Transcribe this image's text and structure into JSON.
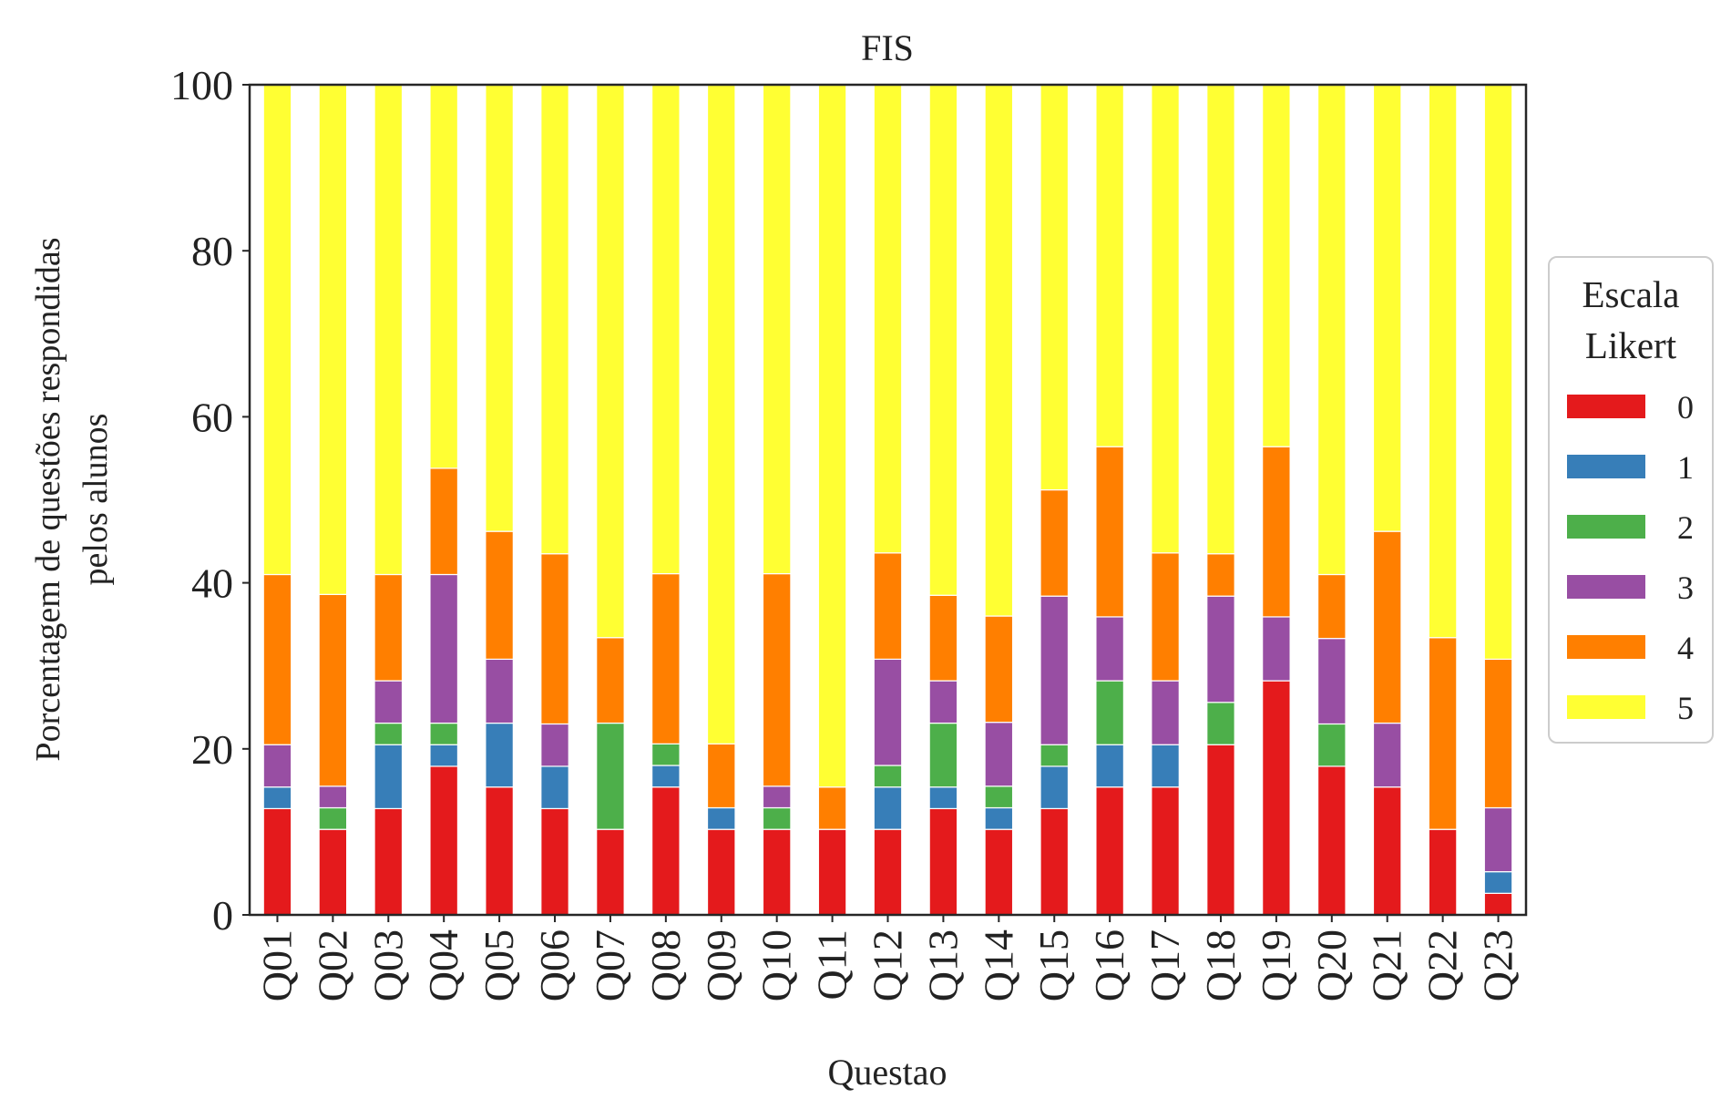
{
  "chart_data": {
    "type": "bar",
    "stacked": true,
    "title": "FIS",
    "xlabel": "Questao",
    "ylabel_lines": [
      "Porcentagem de questões respondidas",
      "pelos alunos"
    ],
    "ylim": [
      0,
      100
    ],
    "yticks": [
      0,
      20,
      40,
      60,
      80,
      100
    ],
    "yticks_labels": [
      "0",
      "20",
      "40",
      "60",
      "80",
      "100"
    ],
    "grid": false,
    "legend": {
      "title_lines": [
        "Escala",
        "Likert"
      ],
      "placement": "right-center"
    },
    "categories": [
      "Q01",
      "Q02",
      "Q03",
      "Q04",
      "Q05",
      "Q06",
      "Q07",
      "Q08",
      "Q09",
      "Q10",
      "Q11",
      "Q12",
      "Q13",
      "Q14",
      "Q15",
      "Q16",
      "Q17",
      "Q18",
      "Q19",
      "Q20",
      "Q21",
      "Q22",
      "Q23"
    ],
    "series": [
      {
        "name": "0",
        "color": "#e41a1c",
        "values": [
          12.8,
          10.3,
          12.8,
          17.9,
          15.4,
          12.8,
          10.3,
          15.4,
          10.3,
          10.3,
          10.3,
          10.3,
          12.8,
          10.3,
          12.8,
          15.4,
          15.4,
          20.5,
          28.2,
          17.9,
          15.4,
          10.3,
          2.6
        ]
      },
      {
        "name": "1",
        "color": "#377eb8",
        "values": [
          2.6,
          0.0,
          7.7,
          2.6,
          7.7,
          5.1,
          0.0,
          2.6,
          2.6,
          0.0,
          0.0,
          5.1,
          2.6,
          2.6,
          5.1,
          5.1,
          5.1,
          0.0,
          0.0,
          0.0,
          0.0,
          0.0,
          2.6
        ]
      },
      {
        "name": "2",
        "color": "#4daf4a",
        "values": [
          0.0,
          2.6,
          2.6,
          2.6,
          0.0,
          0.0,
          12.8,
          2.6,
          0.0,
          2.6,
          0.0,
          2.6,
          7.7,
          2.6,
          2.6,
          7.7,
          0.0,
          5.1,
          0.0,
          5.1,
          0.0,
          0.0,
          0.0
        ]
      },
      {
        "name": "3",
        "color": "#984ea3",
        "values": [
          5.1,
          2.6,
          5.1,
          17.9,
          7.7,
          5.1,
          0.0,
          0.0,
          0.0,
          2.6,
          0.0,
          12.8,
          5.1,
          7.7,
          17.9,
          7.7,
          7.7,
          12.8,
          7.7,
          10.3,
          7.7,
          0.0,
          7.7
        ]
      },
      {
        "name": "4",
        "color": "#ff7f00",
        "values": [
          20.5,
          23.1,
          12.8,
          12.8,
          15.4,
          20.5,
          10.3,
          20.5,
          7.7,
          25.6,
          5.1,
          12.8,
          10.3,
          12.8,
          12.8,
          20.5,
          15.4,
          5.1,
          20.5,
          7.7,
          23.1,
          23.1,
          17.9
        ]
      },
      {
        "name": "5",
        "color": "#ffff33",
        "values": [
          59.0,
          61.4,
          59.0,
          46.2,
          53.8,
          56.5,
          66.6,
          58.9,
          79.4,
          58.9,
          84.6,
          56.4,
          61.5,
          64.0,
          48.8,
          43.6,
          56.4,
          56.5,
          43.6,
          59.0,
          53.8,
          66.6,
          69.2
        ]
      }
    ]
  }
}
